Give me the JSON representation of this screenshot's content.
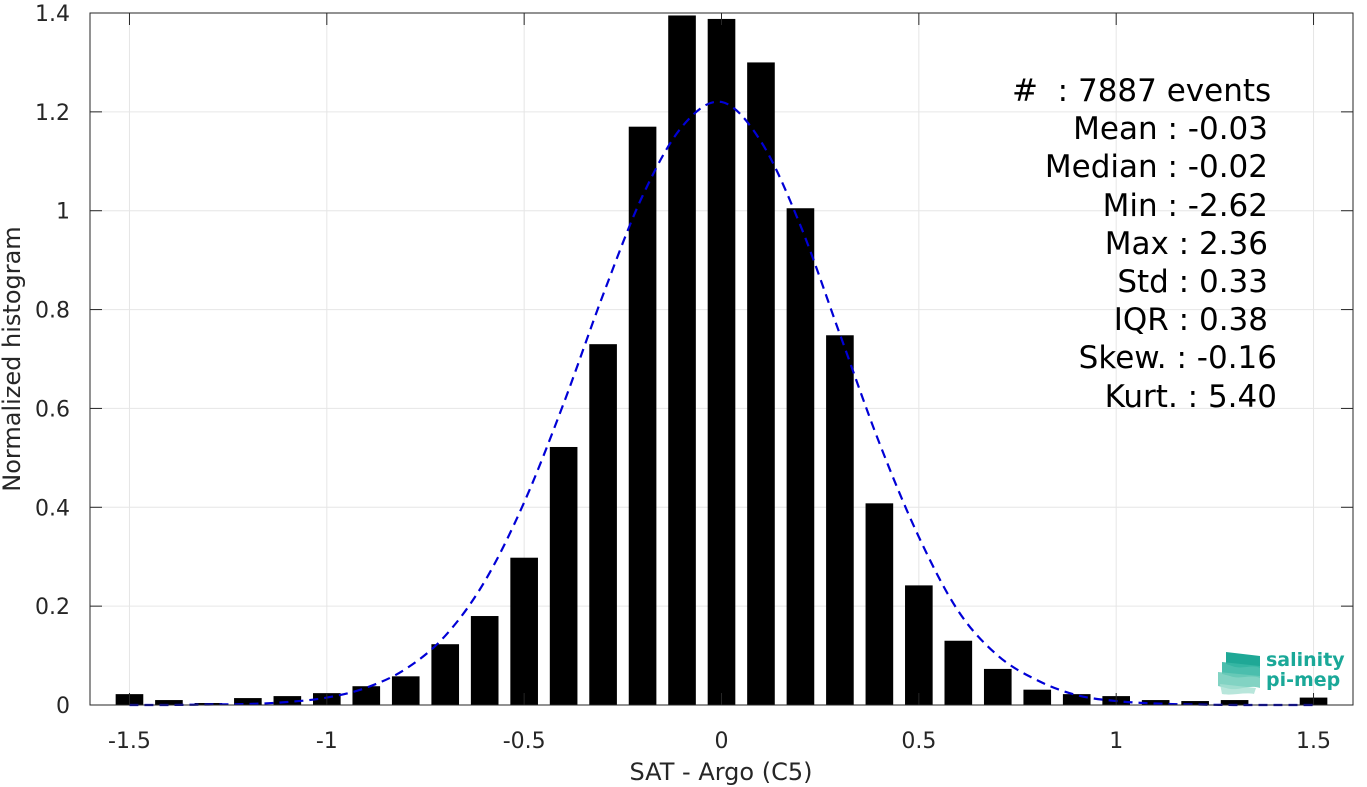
{
  "chart_data": {
    "type": "bar",
    "xlabel": "SAT - Argo (C5)",
    "ylabel": "Normalized histogram",
    "xlim": [
      -1.6,
      1.6
    ],
    "ylim": [
      0,
      1.4
    ],
    "xticks": [
      -1.5,
      -1,
      -0.5,
      0,
      0.5,
      1,
      1.5
    ],
    "xtick_labels": [
      "-1.5",
      "-1",
      "-0.5",
      "0",
      "0.5",
      "1",
      "1.5"
    ],
    "yticks": [
      0,
      0.2,
      0.4,
      0.6,
      0.8,
      1,
      1.2,
      1.4
    ],
    "ytick_labels": [
      "0",
      "0.2",
      "0.4",
      "0.6",
      "0.8",
      "1",
      "1.2",
      "1.4"
    ],
    "grid": true,
    "bar_width": 0.07,
    "bars": {
      "x": [
        -1.5,
        -1.4,
        -1.3,
        -1.2,
        -1.1,
        -1.0,
        -0.9,
        -0.8,
        -0.7,
        -0.6,
        -0.5,
        -0.4,
        -0.3,
        -0.2,
        -0.1,
        0.0,
        0.1,
        0.2,
        0.3,
        0.4,
        0.5,
        0.6,
        0.7,
        0.8,
        0.9,
        1.0,
        1.1,
        1.2,
        1.3,
        1.4,
        1.5
      ],
      "values": [
        0.022,
        0.01,
        0.004,
        0.014,
        0.018,
        0.024,
        0.038,
        0.058,
        0.123,
        0.18,
        0.298,
        0.522,
        0.73,
        1.17,
        1.395,
        1.388,
        1.3,
        1.005,
        0.748,
        0.408,
        0.242,
        0.13,
        0.073,
        0.031,
        0.022,
        0.018,
        0.01,
        0.008,
        0.01,
        0.0,
        0.015
      ]
    },
    "fit_curve": {
      "style": "dashed",
      "color": "#0000d6",
      "x": [
        -1.5,
        -1.4,
        -1.3,
        -1.2,
        -1.1,
        -1.0,
        -0.9,
        -0.8,
        -0.7,
        -0.6,
        -0.5,
        -0.4,
        -0.3,
        -0.2,
        -0.1,
        0.0,
        0.1,
        0.2,
        0.3,
        0.4,
        0.5,
        0.6,
        0.7,
        0.8,
        0.9,
        1.0,
        1.1,
        1.2,
        1.3,
        1.4,
        1.5
      ],
      "y": [
        0.0,
        0.0,
        0.001,
        0.002,
        0.006,
        0.015,
        0.035,
        0.073,
        0.14,
        0.25,
        0.41,
        0.61,
        0.83,
        1.03,
        1.17,
        1.22,
        1.14,
        0.97,
        0.75,
        0.53,
        0.34,
        0.19,
        0.1,
        0.05,
        0.02,
        0.008,
        0.003,
        0.001,
        0.0,
        0.0,
        0.0
      ]
    },
    "colors": {
      "bars": "#000000",
      "fit": "#0000d6",
      "grid": "#e6e6e6",
      "axes": "#262626"
    }
  },
  "stats": {
    "count": "#  : 7887 events",
    "mean": "Mean : -0.03",
    "median": "Median : -0.02",
    "min": "Min : -2.62",
    "max": "Max : 2.36",
    "std": "Std : 0.33",
    "iqr": "IQR : 0.38",
    "skew": "Skew. : -0.16",
    "kurt": "Kurt. : 5.40"
  },
  "logo": {
    "line1": "salinity",
    "line2": "pi-mep",
    "accent": "#1aa898"
  }
}
